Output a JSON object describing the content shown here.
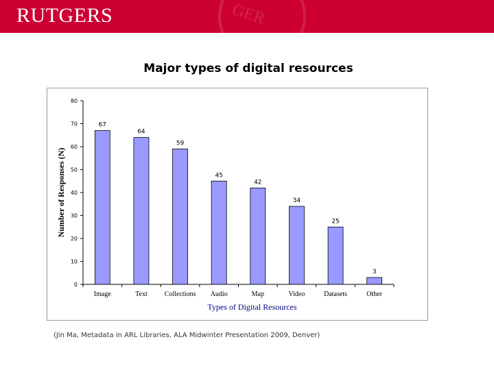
{
  "banner": {
    "logo_text": "RUTGERS",
    "brand_color": "#cc0033"
  },
  "slide": {
    "title": "Major types of digital resources",
    "credit": "(Jin Ma, Metadata in ARL Libraries, ALA Midwinter Presentation 2009, Denver)"
  },
  "chart_data": {
    "type": "bar",
    "title": "",
    "xlabel": "Types of Digital Resources",
    "ylabel": "Number of Responses (N)",
    "categories": [
      "Image",
      "Text",
      "Collections",
      "Audio",
      "Map",
      "Video",
      "Datasets",
      "Other"
    ],
    "values": [
      67,
      64,
      59,
      45,
      42,
      34,
      25,
      3
    ],
    "data_labels": [
      "67",
      "64",
      "59",
      "45",
      "42",
      "34",
      "25",
      "3"
    ],
    "ylim": [
      0,
      80
    ],
    "yticks": [
      "0",
      "10",
      "20",
      "30",
      "40",
      "50",
      "60",
      "70",
      "80"
    ],
    "grid": false,
    "legend": "none",
    "bar_color": "#9999ff",
    "xlabel_color": "#000080"
  }
}
